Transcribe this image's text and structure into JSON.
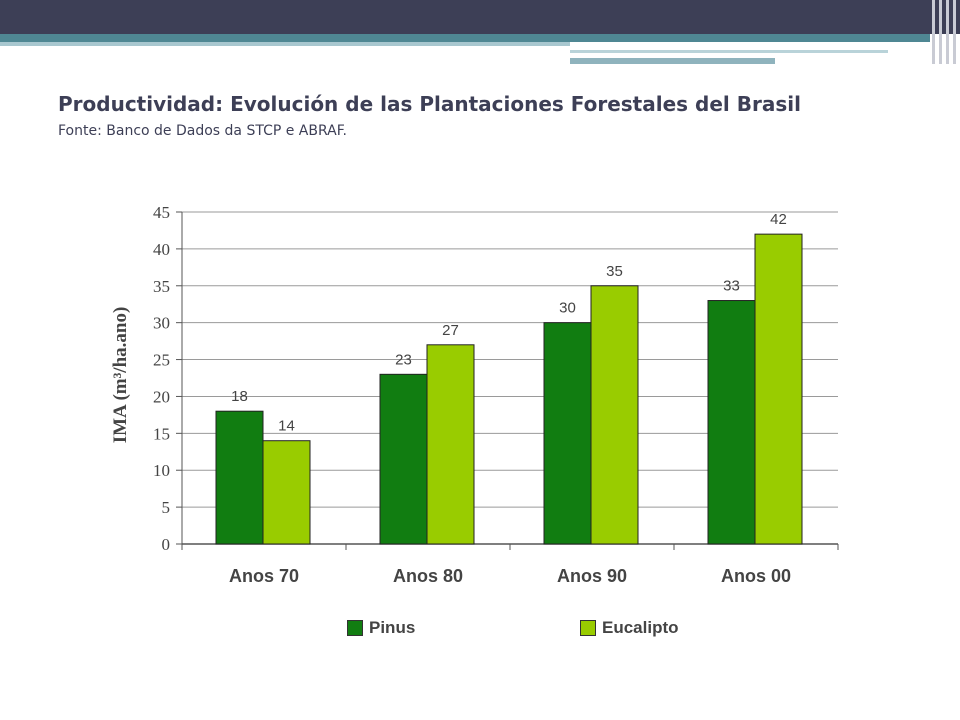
{
  "slide": {
    "title": "Productividad: Evolución de las Plantaciones Forestales del Brasil",
    "subtitle": "Fonte: Banco de Dados da STCP e ABRAF."
  },
  "colors": {
    "pinus": "#117d11",
    "eucalipto": "#99cc00",
    "header": "#3d3f56",
    "accent": "#4f8793"
  },
  "chart_data": {
    "type": "bar",
    "categories": [
      "Anos 70",
      "Anos 80",
      "Anos 90",
      "Anos 00"
    ],
    "series": [
      {
        "name": "Pinus",
        "values": [
          18,
          23,
          30,
          33
        ]
      },
      {
        "name": "Eucalipto",
        "values": [
          14,
          27,
          35,
          42
        ]
      }
    ],
    "ylabel": "IMA (m³/ha.ano)",
    "ylim": [
      0,
      45
    ],
    "yticks": [
      0,
      5,
      10,
      15,
      20,
      25,
      30,
      35,
      40,
      45
    ],
    "grid": true,
    "legend_position": "bottom"
  }
}
